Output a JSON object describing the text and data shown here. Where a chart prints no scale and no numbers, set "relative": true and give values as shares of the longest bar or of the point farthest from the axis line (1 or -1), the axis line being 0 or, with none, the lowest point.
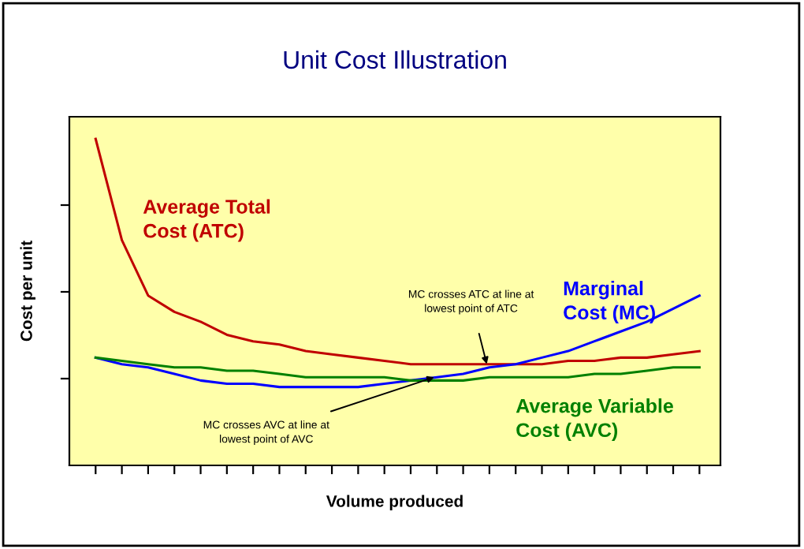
{
  "chart_data": {
    "type": "line",
    "title": "Unit Cost Illustration",
    "xlabel": "Volume produced",
    "ylabel": "Cost per unit",
    "relative": true,
    "categories": [
      null,
      null,
      null,
      null,
      null,
      null,
      null,
      null,
      null,
      null,
      null,
      null,
      null,
      null,
      null,
      null,
      null,
      null,
      null,
      null,
      null,
      null,
      null,
      null
    ],
    "series": [
      {
        "name": "Average Total\nCost (ATC)",
        "color": "#c00000",
        "values": [
          1,
          0.69,
          0.52,
          0.47,
          0.44,
          0.4,
          0.38,
          0.37,
          0.35,
          0.34,
          0.33,
          0.32,
          0.31,
          0.31,
          0.31,
          0.31,
          0.31,
          0.31,
          0.32,
          0.32,
          0.33,
          0.33,
          0.34,
          0.35
        ]
      },
      {
        "name": "Marginal\nCost (MC)",
        "color": "#0000ff",
        "values": [
          0.33,
          0.31,
          0.3,
          0.28,
          0.26,
          0.25,
          0.25,
          0.24,
          0.24,
          0.24,
          0.24,
          0.25,
          0.26,
          0.27,
          0.28,
          0.3,
          0.31,
          0.33,
          0.35,
          0.38,
          0.41,
          0.44,
          0.48,
          0.52
        ]
      },
      {
        "name": "Average Variable\nCost (AVC)",
        "color": "#008000",
        "values": [
          0.33,
          0.32,
          0.31,
          0.3,
          0.3,
          0.29,
          0.29,
          0.28,
          0.27,
          0.27,
          0.27,
          0.27,
          0.26,
          0.26,
          0.26,
          0.27,
          0.27,
          0.27,
          0.27,
          0.28,
          0.28,
          0.29,
          0.3,
          0.3
        ]
      }
    ],
    "annotations": [
      "MC crosses ATC at line at\nlowest point of ATC",
      "MC crosses AVC at line at\nlowest point of AVC"
    ],
    "legend": false,
    "grid": false,
    "marker": "none",
    "line_style": "solid"
  }
}
